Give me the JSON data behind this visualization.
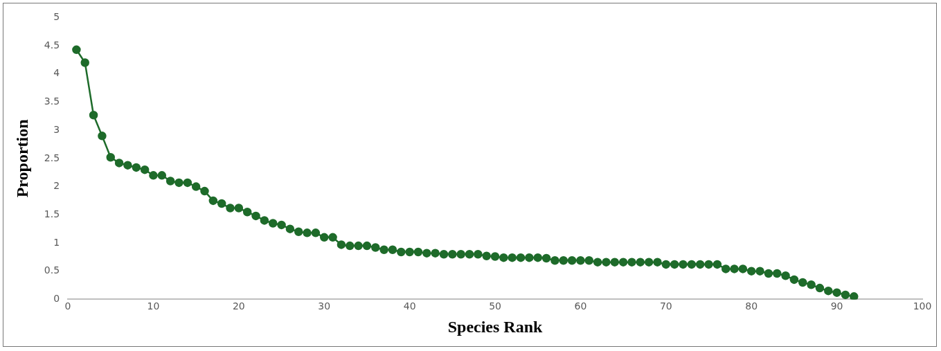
{
  "chart_data": {
    "type": "line",
    "xlabel": "Species Rank",
    "ylabel": "Proportion",
    "x": [
      1,
      2,
      3,
      4,
      5,
      6,
      7,
      8,
      9,
      10,
      11,
      12,
      13,
      14,
      15,
      16,
      17,
      18,
      19,
      20,
      21,
      22,
      23,
      24,
      25,
      26,
      27,
      28,
      29,
      30,
      31,
      32,
      33,
      34,
      35,
      36,
      37,
      38,
      39,
      40,
      41,
      42,
      43,
      44,
      45,
      46,
      47,
      48,
      49,
      50,
      51,
      52,
      53,
      54,
      55,
      56,
      57,
      58,
      59,
      60,
      61,
      62,
      63,
      64,
      65,
      66,
      67,
      68,
      69,
      70,
      71,
      72,
      73,
      74,
      75,
      76,
      77,
      78,
      79,
      80,
      81,
      82,
      83,
      84,
      85,
      86,
      87,
      88,
      89,
      90,
      91,
      92
    ],
    "series": [
      {
        "color": "#1e6b2a",
        "values": [
          4.43,
          4.2,
          3.27,
          2.9,
          2.52,
          2.42,
          2.38,
          2.34,
          2.3,
          2.2,
          2.2,
          2.1,
          2.07,
          2.07,
          2.0,
          1.92,
          1.75,
          1.7,
          1.62,
          1.62,
          1.55,
          1.48,
          1.4,
          1.35,
          1.32,
          1.25,
          1.2,
          1.18,
          1.18,
          1.1,
          1.1,
          0.97,
          0.95,
          0.95,
          0.95,
          0.92,
          0.88,
          0.88,
          0.84,
          0.84,
          0.84,
          0.82,
          0.82,
          0.8,
          0.8,
          0.8,
          0.8,
          0.8,
          0.77,
          0.76,
          0.74,
          0.74,
          0.74,
          0.74,
          0.74,
          0.73,
          0.69,
          0.69,
          0.69,
          0.69,
          0.69,
          0.66,
          0.66,
          0.66,
          0.66,
          0.66,
          0.66,
          0.66,
          0.66,
          0.62,
          0.62,
          0.62,
          0.62,
          0.62,
          0.62,
          0.62,
          0.54,
          0.54,
          0.54,
          0.5,
          0.5,
          0.46,
          0.46,
          0.42,
          0.35,
          0.3,
          0.26,
          0.2,
          0.15,
          0.12,
          0.08,
          0.05
        ]
      }
    ],
    "xlim": [
      0,
      100
    ],
    "xticks": [
      0,
      10,
      20,
      30,
      40,
      50,
      60,
      70,
      80,
      90,
      100
    ],
    "ylim": [
      0,
      5
    ],
    "yticks": [
      0,
      0.5,
      1,
      1.5,
      2,
      2.5,
      3,
      3.5,
      4,
      4.5,
      5
    ],
    "grid": false,
    "legend": false,
    "marker": "circle",
    "line_style": "solid"
  }
}
